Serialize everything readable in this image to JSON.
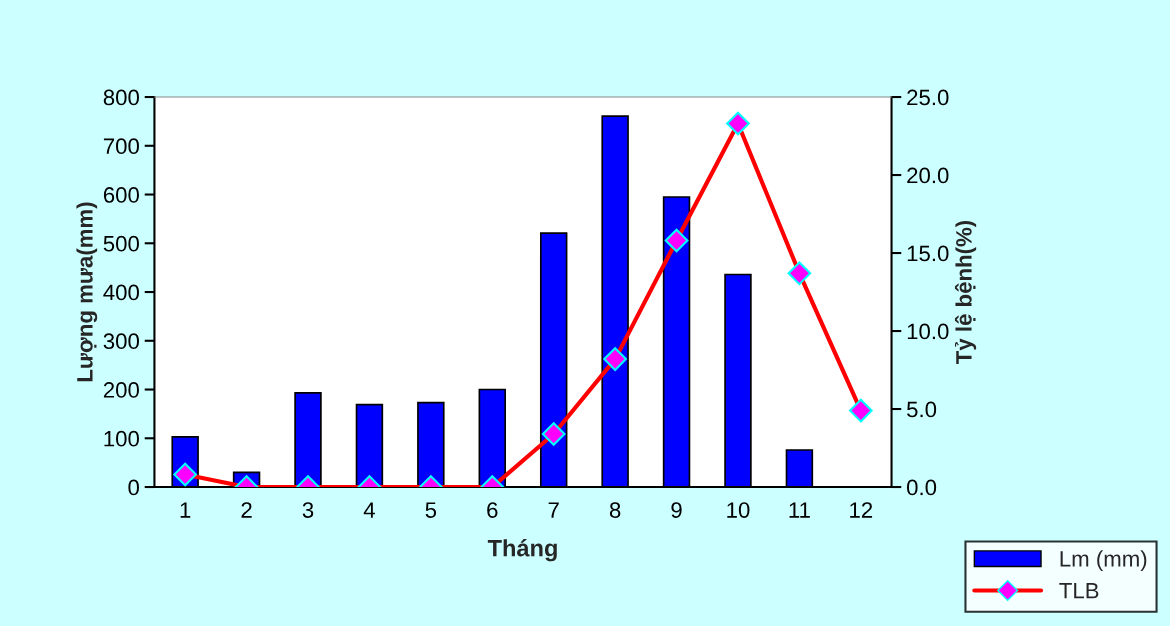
{
  "chart_data": {
    "type": "bar",
    "xlabel": "Tháng",
    "ylabel": "Lượng mưa(mm)",
    "y2label": "Tỷ lệ bệnh(%)",
    "categories": [
      "1",
      "2",
      "3",
      "4",
      "5",
      "6",
      "7",
      "8",
      "9",
      "10",
      "11",
      "12"
    ],
    "series": [
      {
        "name": "Lm (mm)",
        "color": "#0000ff",
        "values": [
          103,
          30,
          193,
          169,
          173,
          200,
          521,
          761,
          595,
          436,
          76,
          null
        ]
      },
      {
        "name": "TLB",
        "type": "line",
        "axis": "y2",
        "color": "#ff0000",
        "marker": "diamond",
        "values": [
          0.8,
          0,
          0,
          0,
          0,
          0,
          3.4,
          8.2,
          15.8,
          23.3,
          13.7,
          4.9
        ]
      }
    ],
    "ylim": [
      0,
      800
    ],
    "yticks": [
      0,
      100,
      200,
      300,
      400,
      500,
      600,
      700,
      800
    ],
    "y2lim": [
      0,
      25
    ],
    "y2ticks": [
      {
        "value": 0,
        "label": "0.0"
      },
      {
        "value": 5,
        "label": "5.0"
      },
      {
        "value": 10,
        "label": "10.0"
      },
      {
        "value": 15,
        "label": "15.0"
      },
      {
        "value": 20,
        "label": "20.0"
      },
      {
        "value": 25,
        "label": "25.0"
      }
    ],
    "grid": false,
    "legend": "bottom right"
  }
}
